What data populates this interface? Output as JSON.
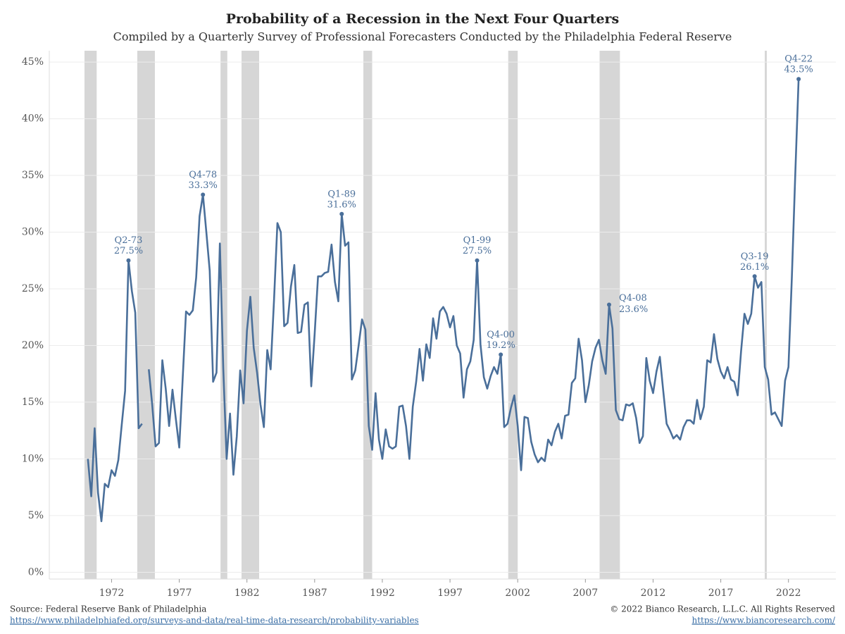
{
  "chart_data": {
    "type": "line",
    "title": "Probability of a Recession in the Next Four Quarters",
    "subtitle": "Compiled by a Quarterly Survey of Professional Forecasters Conducted by the Philadelphia Federal Reserve",
    "color": "#4a6f9a",
    "band_color": "#d6d6d6",
    "grid": true,
    "xlim": [
      1967.4,
      2025.5
    ],
    "ylim": [
      -0.6,
      46
    ],
    "xticks": [
      1972,
      1977,
      1982,
      1987,
      1992,
      1997,
      2002,
      2007,
      2012,
      2017,
      2022
    ],
    "yticks": [
      {
        "value": 0,
        "label": "0%"
      },
      {
        "value": 5,
        "label": "5%"
      },
      {
        "value": 10,
        "label": "10%"
      },
      {
        "value": 15,
        "label": "15%"
      },
      {
        "value": 20,
        "label": "20%"
      },
      {
        "value": 25,
        "label": "25%"
      },
      {
        "value": 30,
        "label": "30%"
      },
      {
        "value": 35,
        "label": "35%"
      },
      {
        "value": 40,
        "label": "40%"
      },
      {
        "value": 45,
        "label": "45%"
      }
    ],
    "recessions": [
      [
        1970.0,
        1970.9
      ],
      [
        1973.9,
        1975.2
      ],
      [
        1980.05,
        1980.55
      ],
      [
        1981.6,
        1982.9
      ],
      [
        1990.6,
        1991.25
      ],
      [
        2001.3,
        2002.0
      ],
      [
        2008.05,
        2009.55
      ],
      [
        2020.25,
        2020.4
      ]
    ],
    "x": [
      1970.25,
      1970.5,
      1970.75,
      1971,
      1971.25,
      1971.5,
      1971.75,
      1972,
      1972.25,
      1972.5,
      1972.75,
      1973,
      1973.25,
      1973.5,
      1973.75,
      1974,
      1974.25,
      1974.5,
      1974.75,
      1975,
      1975.25,
      1975.5,
      1975.75,
      1976,
      1976.25,
      1976.5,
      1976.75,
      1977,
      1977.25,
      1977.5,
      1977.75,
      1978,
      1978.25,
      1978.5,
      1978.75,
      1979,
      1979.25,
      1979.5,
      1979.75,
      1980,
      1980.25,
      1980.5,
      1980.75,
      1981,
      1981.25,
      1981.5,
      1981.75,
      1982,
      1982.25,
      1982.5,
      1982.75,
      1983,
      1983.25,
      1983.5,
      1983.75,
      1984,
      1984.25,
      1984.5,
      1984.75,
      1985,
      1985.25,
      1985.5,
      1985.75,
      1986,
      1986.25,
      1986.5,
      1986.75,
      1987,
      1987.25,
      1987.5,
      1987.75,
      1988,
      1988.25,
      1988.5,
      1988.75,
      1989,
      1989.25,
      1989.5,
      1989.75,
      1990,
      1990.25,
      1990.5,
      1990.75,
      1991,
      1991.25,
      1991.5,
      1991.75,
      1992,
      1992.25,
      1992.5,
      1992.75,
      1993,
      1993.25,
      1993.5,
      1993.75,
      1994,
      1994.25,
      1994.5,
      1994.75,
      1995,
      1995.25,
      1995.5,
      1995.75,
      1996,
      1996.25,
      1996.5,
      1996.75,
      1997,
      1997.25,
      1997.5,
      1997.75,
      1998,
      1998.25,
      1998.5,
      1998.75,
      1999,
      1999.25,
      1999.5,
      1999.75,
      2000,
      2000.25,
      2000.5,
      2000.75,
      2001,
      2001.25,
      2001.5,
      2001.75,
      2002,
      2002.25,
      2002.5,
      2002.75,
      2003,
      2003.25,
      2003.5,
      2003.75,
      2004,
      2004.25,
      2004.5,
      2004.75,
      2005,
      2005.25,
      2005.5,
      2005.75,
      2006,
      2006.25,
      2006.5,
      2006.75,
      2007,
      2007.25,
      2007.5,
      2007.75,
      2008,
      2008.25,
      2008.5,
      2008.75,
      2009,
      2009.25,
      2009.5,
      2009.75,
      2010,
      2010.25,
      2010.5,
      2010.75,
      2011,
      2011.25,
      2011.5,
      2011.75,
      2012,
      2012.25,
      2012.5,
      2012.75,
      2013,
      2013.25,
      2013.5,
      2013.75,
      2014,
      2014.25,
      2014.5,
      2014.75,
      2015,
      2015.25,
      2015.5,
      2015.75,
      2016,
      2016.25,
      2016.5,
      2016.75,
      2017,
      2017.25,
      2017.5,
      2017.75,
      2018,
      2018.25,
      2018.5,
      2018.75,
      2019,
      2019.25,
      2019.5,
      2019.75,
      2020,
      2020.25,
      2020.5,
      2020.75,
      2021,
      2021.25,
      2021.5,
      2021.75,
      2022,
      2022.25,
      2022.5,
      2022.75
    ],
    "values": [
      10.0,
      6.7,
      12.7,
      7.0,
      4.5,
      7.8,
      7.5,
      9.0,
      8.5,
      9.9,
      13.0,
      16.0,
      27.5,
      24.8,
      22.9,
      12.7,
      13.1,
      null,
      17.9,
      14.8,
      11.1,
      11.4,
      18.7,
      16.2,
      12.9,
      16.1,
      13.5,
      11.0,
      17.0,
      23.0,
      22.7,
      23.1,
      26.0,
      31.4,
      33.3,
      30.0,
      26.6,
      16.8,
      17.6,
      29.0,
      18.0,
      10.0,
      14.0,
      8.6,
      12.0,
      17.8,
      14.9,
      21.3,
      24.3,
      19.8,
      17.6,
      14.8,
      12.8,
      19.6,
      17.9,
      24.0,
      30.8,
      30.0,
      21.7,
      22.0,
      25.2,
      27.1,
      21.1,
      21.2,
      23.6,
      23.8,
      16.4,
      21.0,
      26.1,
      26.1,
      26.4,
      26.5,
      28.9,
      25.6,
      23.9,
      31.6,
      28.8,
      29.1,
      17.0,
      17.8,
      20.0,
      22.3,
      21.4,
      12.9,
      10.8,
      15.8,
      11.7,
      10.0,
      12.6,
      11.1,
      10.9,
      11.1,
      14.6,
      14.7,
      12.9,
      10.0,
      14.6,
      16.8,
      19.7,
      16.9,
      20.1,
      18.9,
      22.4,
      20.6,
      23.0,
      23.4,
      22.8,
      21.6,
      22.6,
      20.0,
      19.3,
      15.4,
      17.9,
      18.6,
      20.5,
      27.5,
      20.1,
      17.2,
      16.2,
      17.3,
      18.1,
      17.5,
      19.2,
      12.8,
      13.1,
      14.5,
      15.6,
      12.9,
      9.0,
      13.7,
      13.6,
      11.5,
      10.4,
      9.7,
      10.1,
      9.8,
      11.7,
      11.2,
      12.4,
      13.1,
      11.8,
      13.8,
      13.9,
      16.7,
      17.1,
      20.6,
      18.7,
      15.0,
      16.5,
      18.6,
      19.8,
      20.5,
      18.7,
      17.5,
      23.6,
      21.5,
      14.3,
      13.5,
      13.4,
      14.8,
      14.7,
      14.9,
      13.6,
      11.4,
      12.0,
      18.9,
      16.9,
      15.8,
      17.7,
      19.0,
      16.0,
      13.1,
      12.5,
      11.8,
      12.1,
      11.7,
      12.8,
      13.4,
      13.4,
      13.1,
      15.2,
      13.5,
      14.6,
      18.7,
      18.5,
      21.0,
      18.8,
      17.7,
      17.1,
      18.1,
      17.0,
      16.8,
      15.6,
      19.5,
      22.8,
      21.9,
      22.8,
      26.1,
      25.1,
      25.6,
      18.1,
      17.0,
      13.9,
      14.1,
      13.5,
      12.9,
      16.9,
      18.1,
      26.0,
      35.0,
      43.5
    ],
    "annotations": [
      {
        "period": "Q2-73",
        "value_label": "27.5%",
        "x": 1973.25,
        "y": 27.5
      },
      {
        "period": "Q4-78",
        "value_label": "33.3%",
        "x": 1978.75,
        "y": 33.3
      },
      {
        "period": "Q1-89",
        "value_label": "31.6%",
        "x": 1989,
        "y": 31.6
      },
      {
        "period": "Q1-99",
        "value_label": "27.5%",
        "x": 1999,
        "y": 27.5
      },
      {
        "period": "Q4-00",
        "value_label": "19.2%",
        "x": 2000.75,
        "y": 19.2
      },
      {
        "period": "Q4-08",
        "value_label": "23.6%",
        "x": 2008.75,
        "y": 23.6,
        "position": "right"
      },
      {
        "period": "Q3-19",
        "value_label": "26.1%",
        "x": 2019.5,
        "y": 26.1
      },
      {
        "period": "Q4-22",
        "value_label": "43.5%",
        "x": 2022.75,
        "y": 43.5
      }
    ],
    "source": "Source: Federal Reserve Bank of Philadelphia",
    "source_url": "https://www.philadelphiafed.org/surveys-and-data/real-time-data-research/probability-variables",
    "copyright": "© 2022 Bianco Research, L.L.C. All Rights Reserved",
    "copyright_url": "https://www.biancoresearch.com/"
  }
}
